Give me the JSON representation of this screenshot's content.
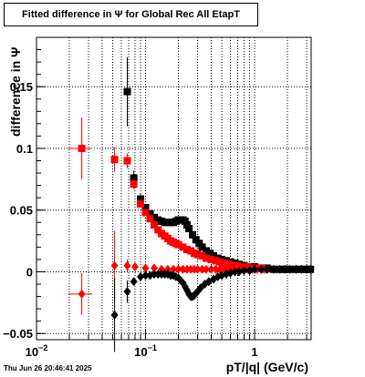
{
  "chart_data": {
    "type": "scatter",
    "title": "Fitted difference in  Ψ   for Global Rec All EtapT",
    "xlabel": "pT/|q| (GeV/c)",
    "ylabel": "difference in  Ψ",
    "x_scale": "log",
    "xlim": [
      0.01,
      3.3
    ],
    "ylim": [
      -0.055,
      0.19
    ],
    "grid": true,
    "x_ticks": [
      {
        "value": 0.01,
        "base": "10",
        "exp": "−2"
      },
      {
        "value": 0.1,
        "base": "10",
        "exp": "−1"
      },
      {
        "value": 1,
        "base": "1",
        "exp": ""
      }
    ],
    "y_ticks": [
      {
        "value": -0.05,
        "label": "−0.05"
      },
      {
        "value": 0,
        "label": "0"
      },
      {
        "value": 0.05,
        "label": "0.05"
      },
      {
        "value": 0.1,
        "label": "0.1"
      },
      {
        "value": 0.15,
        "label": "0.15"
      }
    ],
    "series": [
      {
        "color": "#000000",
        "marker": "square",
        "points": [
          {
            "x": 0.068,
            "y": 0.146,
            "ey": 0.028
          },
          {
            "x": 0.078,
            "y": 0.076,
            "ey": 0.006
          },
          {
            "x": 0.09,
            "y": 0.059,
            "ey": 0.004
          },
          {
            "x": 0.1,
            "y": 0.052,
            "ey": 0.003
          },
          {
            "x": 0.11,
            "y": 0.047,
            "ey": 0.002
          },
          {
            "x": 0.12,
            "y": 0.044,
            "ey": 0.002
          },
          {
            "x": 0.13,
            "y": 0.042
          },
          {
            "x": 0.14,
            "y": 0.041
          },
          {
            "x": 0.15,
            "y": 0.04
          },
          {
            "x": 0.16,
            "y": 0.04
          },
          {
            "x": 0.17,
            "y": 0.04
          },
          {
            "x": 0.18,
            "y": 0.04
          },
          {
            "x": 0.19,
            "y": 0.041
          },
          {
            "x": 0.2,
            "y": 0.042
          },
          {
            "x": 0.21,
            "y": 0.042
          },
          {
            "x": 0.22,
            "y": 0.042
          },
          {
            "x": 0.23,
            "y": 0.041
          },
          {
            "x": 0.24,
            "y": 0.038
          },
          {
            "x": 0.25,
            "y": 0.035
          },
          {
            "x": 0.27,
            "y": 0.03
          },
          {
            "x": 0.29,
            "y": 0.026
          },
          {
            "x": 0.31,
            "y": 0.023
          },
          {
            "x": 0.33,
            "y": 0.02
          },
          {
            "x": 0.36,
            "y": 0.017
          },
          {
            "x": 0.39,
            "y": 0.015
          },
          {
            "x": 0.42,
            "y": 0.013
          },
          {
            "x": 0.46,
            "y": 0.011
          },
          {
            "x": 0.5,
            "y": 0.01
          },
          {
            "x": 0.55,
            "y": 0.009
          },
          {
            "x": 0.6,
            "y": 0.008
          },
          {
            "x": 0.66,
            "y": 0.007
          },
          {
            "x": 0.72,
            "y": 0.006
          },
          {
            "x": 0.8,
            "y": 0.005
          },
          {
            "x": 0.9,
            "y": 0.004
          },
          {
            "x": 1.0,
            "y": 0.004
          },
          {
            "x": 1.15,
            "y": 0.003
          },
          {
            "x": 1.3,
            "y": 0.003
          },
          {
            "x": 1.5,
            "y": 0.002
          },
          {
            "x": 1.7,
            "y": 0.002
          },
          {
            "x": 1.9,
            "y": 0.002
          },
          {
            "x": 2.1,
            "y": 0.002
          },
          {
            "x": 2.4,
            "y": 0.002
          },
          {
            "x": 2.7,
            "y": 0.002
          },
          {
            "x": 3.0,
            "y": 0.002
          },
          {
            "x": 3.25,
            "y": 0.002
          }
        ]
      },
      {
        "color": "#ff0000",
        "marker": "square",
        "points": [
          {
            "x": 0.026,
            "y": 0.1,
            "ey": 0.025,
            "xerr": [
              0.0195,
              0.0325
            ]
          },
          {
            "x": 0.052,
            "y": 0.091,
            "ey": 0.01
          },
          {
            "x": 0.068,
            "y": 0.09,
            "ey": 0.006
          },
          {
            "x": 0.078,
            "y": 0.071,
            "ey": 0.004
          },
          {
            "x": 0.09,
            "y": 0.055,
            "ey": 0.003
          },
          {
            "x": 0.1,
            "y": 0.048,
            "ey": 0.002
          },
          {
            "x": 0.11,
            "y": 0.043
          },
          {
            "x": 0.12,
            "y": 0.038
          },
          {
            "x": 0.13,
            "y": 0.034
          },
          {
            "x": 0.14,
            "y": 0.031
          },
          {
            "x": 0.15,
            "y": 0.029
          },
          {
            "x": 0.16,
            "y": 0.027
          },
          {
            "x": 0.17,
            "y": 0.025
          },
          {
            "x": 0.18,
            "y": 0.024
          },
          {
            "x": 0.19,
            "y": 0.023
          },
          {
            "x": 0.2,
            "y": 0.022
          },
          {
            "x": 0.22,
            "y": 0.02
          },
          {
            "x": 0.24,
            "y": 0.018
          },
          {
            "x": 0.26,
            "y": 0.017
          },
          {
            "x": 0.28,
            "y": 0.015
          },
          {
            "x": 0.3,
            "y": 0.014
          },
          {
            "x": 0.33,
            "y": 0.013
          },
          {
            "x": 0.36,
            "y": 0.011
          },
          {
            "x": 0.4,
            "y": 0.01
          },
          {
            "x": 0.44,
            "y": 0.009
          },
          {
            "x": 0.48,
            "y": 0.008
          },
          {
            "x": 0.53,
            "y": 0.007
          },
          {
            "x": 0.58,
            "y": 0.006
          },
          {
            "x": 0.64,
            "y": 0.005
          },
          {
            "x": 0.7,
            "y": 0.005
          },
          {
            "x": 0.78,
            "y": 0.004
          },
          {
            "x": 0.86,
            "y": 0.004
          },
          {
            "x": 0.95,
            "y": 0.003
          },
          {
            "x": 1.05,
            "y": 0.003
          },
          {
            "x": 1.15,
            "y": 0.003
          },
          {
            "x": 1.25,
            "y": 0.002
          }
        ]
      },
      {
        "color": "#ff0000",
        "marker": "diamond",
        "points": [
          {
            "x": 0.026,
            "y": -0.018,
            "ey": 0.017,
            "xerr": [
              0.0195,
              0.0325
            ]
          },
          {
            "x": 0.052,
            "y": 0.005,
            "ey": 0.028
          },
          {
            "x": 0.068,
            "y": 0.005,
            "ey": 0.005
          },
          {
            "x": 0.08,
            "y": 0.004
          },
          {
            "x": 0.1,
            "y": 0.003
          },
          {
            "x": 0.12,
            "y": 0.003
          },
          {
            "x": 0.14,
            "y": 0.002
          },
          {
            "x": 0.16,
            "y": 0.002
          },
          {
            "x": 0.18,
            "y": 0.002
          },
          {
            "x": 0.2,
            "y": 0.002
          },
          {
            "x": 0.22,
            "y": 0.002
          },
          {
            "x": 0.24,
            "y": 0.002
          },
          {
            "x": 0.26,
            "y": 0.002
          },
          {
            "x": 0.28,
            "y": 0.002
          },
          {
            "x": 0.3,
            "y": 0.002
          },
          {
            "x": 0.33,
            "y": 0.002
          },
          {
            "x": 0.36,
            "y": 0.002
          },
          {
            "x": 0.4,
            "y": 0.002
          },
          {
            "x": 0.44,
            "y": 0.002
          },
          {
            "x": 0.48,
            "y": 0.002
          },
          {
            "x": 0.53,
            "y": 0.002
          },
          {
            "x": 0.58,
            "y": 0.002
          },
          {
            "x": 0.64,
            "y": 0.002
          },
          {
            "x": 0.7,
            "y": 0.002
          },
          {
            "x": 0.78,
            "y": 0.002
          },
          {
            "x": 0.86,
            "y": 0.002
          },
          {
            "x": 0.95,
            "y": 0.002
          },
          {
            "x": 1.05,
            "y": 0.002
          },
          {
            "x": 1.15,
            "y": 0.002
          },
          {
            "x": 1.25,
            "y": 0.002
          }
        ]
      },
      {
        "color": "#000000",
        "marker": "diamond",
        "points": [
          {
            "x": 0.052,
            "y": -0.035,
            "ey": 0.03
          },
          {
            "x": 0.068,
            "y": -0.016,
            "ey": 0.009
          },
          {
            "x": 0.078,
            "y": -0.008,
            "ey": 0.003
          },
          {
            "x": 0.09,
            "y": -0.004
          },
          {
            "x": 0.1,
            "y": -0.003
          },
          {
            "x": 0.11,
            "y": -0.003
          },
          {
            "x": 0.12,
            "y": -0.002
          },
          {
            "x": 0.13,
            "y": -0.002
          },
          {
            "x": 0.14,
            "y": -0.002
          },
          {
            "x": 0.15,
            "y": -0.002
          },
          {
            "x": 0.16,
            "y": -0.002
          },
          {
            "x": 0.17,
            "y": -0.003
          },
          {
            "x": 0.18,
            "y": -0.003
          },
          {
            "x": 0.19,
            "y": -0.004
          },
          {
            "x": 0.2,
            "y": -0.005
          },
          {
            "x": 0.21,
            "y": -0.007
          },
          {
            "x": 0.22,
            "y": -0.009
          },
          {
            "x": 0.23,
            "y": -0.012
          },
          {
            "x": 0.24,
            "y": -0.015
          },
          {
            "x": 0.25,
            "y": -0.018
          },
          {
            "x": 0.26,
            "y": -0.02
          },
          {
            "x": 0.27,
            "y": -0.02
          },
          {
            "x": 0.28,
            "y": -0.019
          },
          {
            "x": 0.3,
            "y": -0.016
          },
          {
            "x": 0.32,
            "y": -0.013
          },
          {
            "x": 0.35,
            "y": -0.01
          },
          {
            "x": 0.38,
            "y": -0.008
          },
          {
            "x": 0.42,
            "y": -0.006
          },
          {
            "x": 0.46,
            "y": -0.004
          },
          {
            "x": 0.5,
            "y": -0.003
          },
          {
            "x": 0.55,
            "y": -0.002
          },
          {
            "x": 0.6,
            "y": -0.001
          },
          {
            "x": 0.66,
            "y": 0.0
          },
          {
            "x": 0.72,
            "y": 0.0
          },
          {
            "x": 0.8,
            "y": 0.001
          },
          {
            "x": 0.9,
            "y": 0.001
          },
          {
            "x": 1.0,
            "y": 0.002
          },
          {
            "x": 1.15,
            "y": 0.002
          },
          {
            "x": 1.3,
            "y": 0.002
          },
          {
            "x": 1.5,
            "y": 0.002
          },
          {
            "x": 1.7,
            "y": 0.002
          },
          {
            "x": 1.9,
            "y": 0.002
          },
          {
            "x": 2.1,
            "y": 0.002
          },
          {
            "x": 2.4,
            "y": 0.002
          },
          {
            "x": 2.7,
            "y": 0.002
          },
          {
            "x": 3.0,
            "y": 0.002
          },
          {
            "x": 3.25,
            "y": 0.002
          }
        ]
      }
    ]
  },
  "footer": {
    "timestamp": "Thu Jun 26 20:46:41 2025"
  }
}
